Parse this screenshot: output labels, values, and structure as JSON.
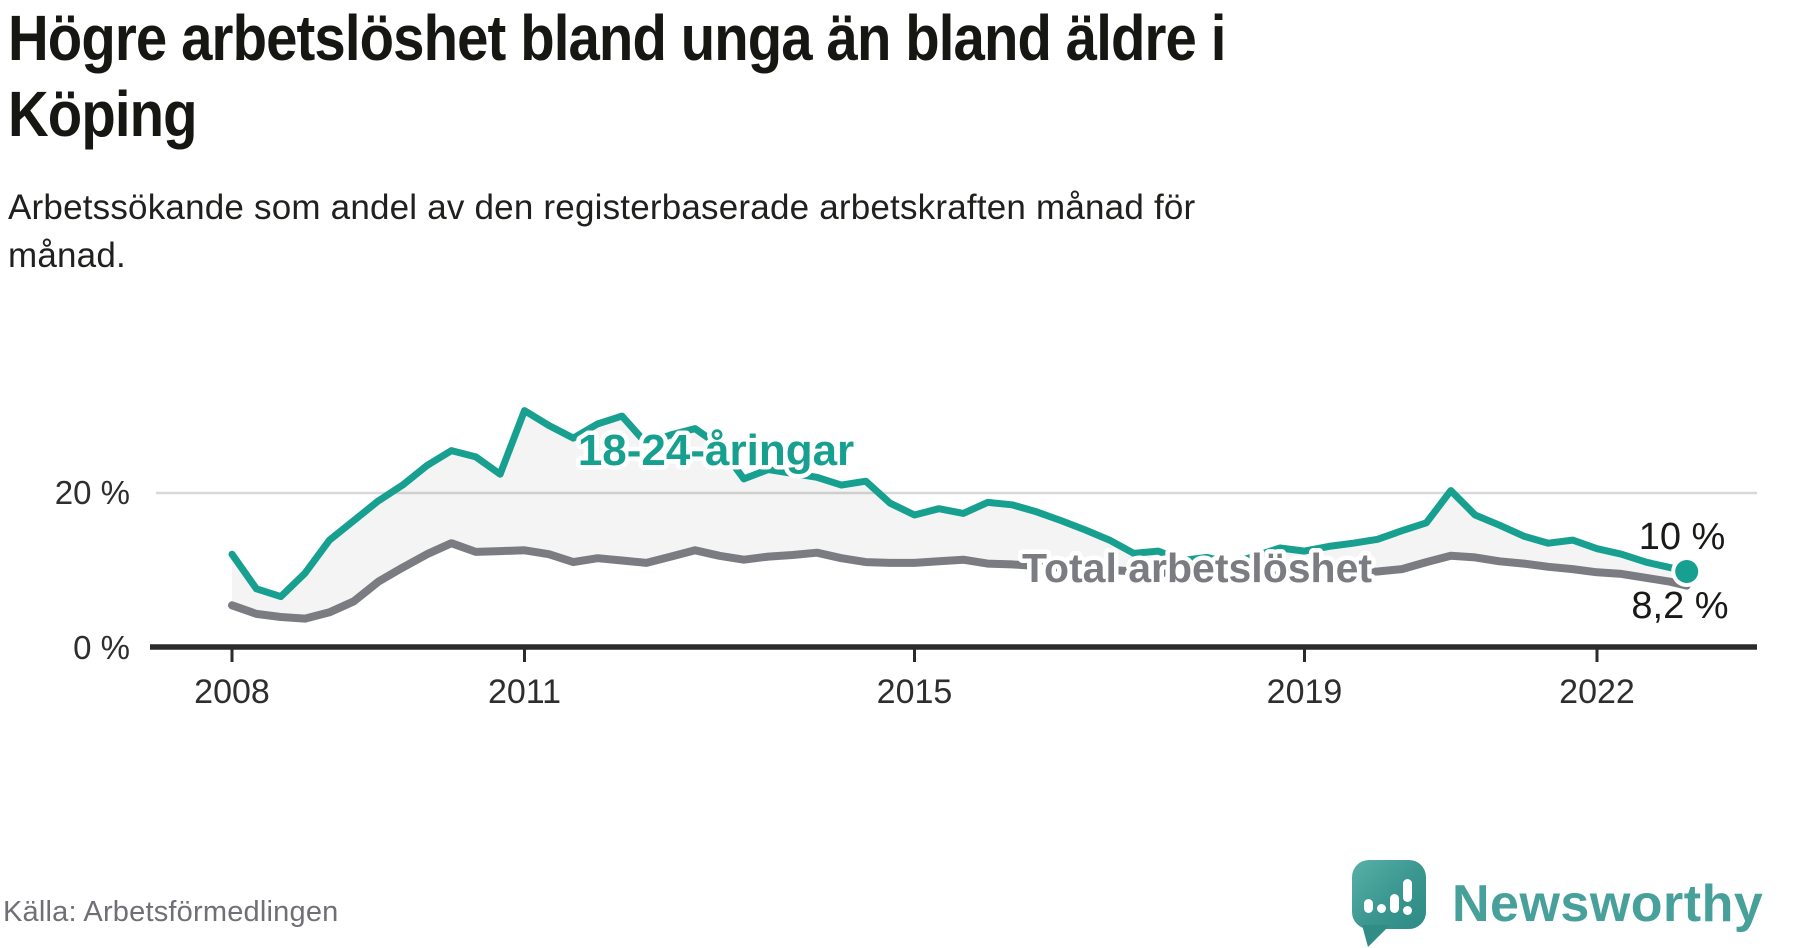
{
  "header": {
    "title": "Högre arbetslöshet bland unga än bland äldre i\nKöping",
    "subtitle": "Arbetssökande som andel av den registerbaserade arbetskraften månad för\nmånad."
  },
  "footer": {
    "source": "Källa: Arbetsförmedlingen",
    "brand": "Newsworthy"
  },
  "icons": {
    "logo": "speech-bubble-bar-chart-icon"
  },
  "colors": {
    "youth_line": "#17a08f",
    "total_line": "#7b7c81",
    "gridline": "#d9d9d9",
    "axis": "#2b2b2b",
    "axis_text": "#2e2e2e",
    "value_text": "#191917",
    "fill_between": "rgba(0,0,0,0.045)",
    "source_text": "#6f6f76",
    "brand_teal": "#47a09a"
  },
  "chart_data": {
    "type": "line",
    "unit": "%",
    "grid": "horizontal-at-20-only",
    "legend": "inline-labels-on-lines",
    "xlim": [
      2008,
      2023
    ],
    "ylim": [
      0,
      32
    ],
    "x_ticks": [
      2008,
      2011,
      2015,
      2019,
      2022
    ],
    "y_ticks": [
      {
        "value": 20,
        "label": "20 %"
      },
      {
        "value": 0,
        "label": "0 %"
      }
    ],
    "x_years": [
      2008,
      2008.25,
      2008.5,
      2008.75,
      2009,
      2009.25,
      2009.5,
      2009.75,
      2010,
      2010.25,
      2010.5,
      2010.75,
      2011,
      2011.25,
      2011.5,
      2011.75,
      2012,
      2012.25,
      2012.5,
      2012.75,
      2013,
      2013.25,
      2013.5,
      2013.75,
      2014,
      2014.25,
      2014.5,
      2014.75,
      2015,
      2015.25,
      2015.5,
      2015.75,
      2016,
      2016.25,
      2016.5,
      2016.75,
      2017,
      2017.25,
      2017.5,
      2017.75,
      2018,
      2018.25,
      2018.5,
      2018.75,
      2019,
      2019.25,
      2019.5,
      2019.75,
      2020,
      2020.25,
      2020.5,
      2020.75,
      2021,
      2021.25,
      2021.5,
      2021.75,
      2022,
      2022.25,
      2022.5,
      2022.75,
      2022.92
    ],
    "series": [
      {
        "name": "18-24-åringar",
        "color": "#17a08f",
        "end_label": "10 %",
        "last_value": 10,
        "values": [
          12.2,
          7.8,
          6.8,
          9.8,
          14.0,
          16.5,
          19.0,
          21.0,
          23.5,
          25.4,
          24.6,
          22.4,
          30.5,
          28.6,
          27.0,
          28.8,
          29.8,
          26.3,
          27.4,
          28.2,
          26.0,
          21.8,
          23.0,
          22.5,
          22.0,
          21.0,
          21.5,
          18.7,
          17.2,
          18.0,
          17.4,
          18.8,
          18.5,
          17.6,
          16.5,
          15.3,
          14.0,
          12.3,
          12.6,
          11.4,
          11.8,
          11.0,
          12.0,
          13.0,
          12.6,
          13.2,
          13.6,
          14.1,
          15.2,
          16.2,
          20.3,
          17.2,
          15.9,
          14.5,
          13.6,
          14.0,
          12.9,
          12.2,
          11.2,
          10.5,
          10.0
        ]
      },
      {
        "name": "Total arbetslöshet",
        "color": "#7b7c81",
        "end_label": "8,2 %",
        "last_value": 8.2,
        "values": [
          5.7,
          4.6,
          4.2,
          4.0,
          4.8,
          6.2,
          8.7,
          10.5,
          12.2,
          13.6,
          12.5,
          12.6,
          12.7,
          12.2,
          11.2,
          11.7,
          11.4,
          11.1,
          11.9,
          12.7,
          12.0,
          11.5,
          11.9,
          12.1,
          12.4,
          11.7,
          11.2,
          11.1,
          11.1,
          11.3,
          11.5,
          11.0,
          10.9,
          10.7,
          10.5,
          10.3,
          10.2,
          10.0,
          9.9,
          9.7,
          9.6,
          9.5,
          9.4,
          9.5,
          9.7,
          9.8,
          9.9,
          10.0,
          10.3,
          11.2,
          12.0,
          11.8,
          11.3,
          11.0,
          10.6,
          10.3,
          9.9,
          9.7,
          9.2,
          8.7,
          8.2
        ]
      }
    ]
  }
}
